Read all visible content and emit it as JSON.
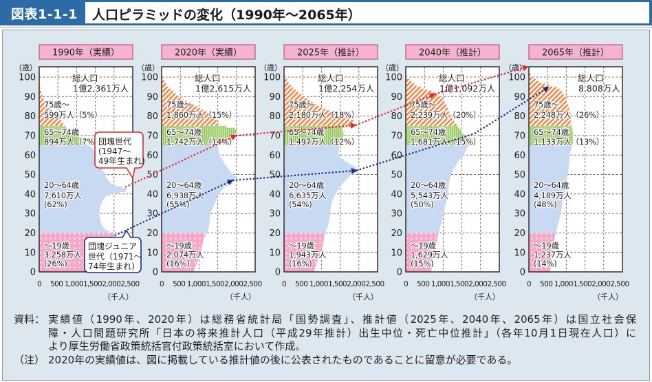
{
  "header": {
    "figure_label": "図表1-1-1",
    "title": "人口ピラミッドの変化（1990年〜2065年）"
  },
  "chart_data": {
    "type": "area",
    "title": "人口ピラミッドの変化（1990年〜2065年）",
    "xlabel": "（千人）",
    "ylabel": "（歳）",
    "xlim": [
      0,
      2500
    ],
    "ylim": [
      0,
      105
    ],
    "x_tick_values": [
      0,
      500,
      1000,
      1500,
      2000,
      2500
    ],
    "x_tick_labels": [
      "0",
      "500",
      "1,000",
      "1,500",
      "2,000",
      "2,500"
    ],
    "y_ticks": [
      "0",
      "10",
      "20",
      "30",
      "40",
      "50",
      "60",
      "70",
      "80",
      "90",
      "100"
    ],
    "grid": true,
    "colors": {
      "75+": "#f0884a",
      "65-74": "#93c462",
      "65-74_light": "#c9e3a6",
      "20-64": "#c8daf2",
      "0-19": "#f6a8c6",
      "header_fill": "#f6b3cf",
      "header_border": "#b8577f",
      "cohort_boomer": "#e3262b",
      "cohort_junior": "#1f2d86"
    },
    "age_bands": [
      {
        "key": "0-19",
        "from": 0,
        "to": 20
      },
      {
        "key": "20-64",
        "from": 20,
        "to": 65
      },
      {
        "key": "65-74",
        "from": 65,
        "to": 75
      },
      {
        "key": "75+",
        "from": 75,
        "to": 105
      }
    ],
    "panels": [
      {
        "year": 1990,
        "year_label": "1990年（実績）",
        "total_title": "総人口",
        "total_value": "1億2,361万人",
        "bands": [
          {
            "key": "75+",
            "population_10k": 599,
            "share_pct": 5,
            "lines": [
              "75歳〜",
              "599万人（5%）"
            ]
          },
          {
            "key": "65-74",
            "population_10k": 894,
            "share_pct": 7,
            "lines": [
              "65〜74歳",
              "894万人（7%）"
            ]
          },
          {
            "key": "20-64",
            "population_10k": 7610,
            "share_pct": 62,
            "lines": [
              "20〜64歳",
              "7,610万人",
              "(62%)"
            ]
          },
          {
            "key": "0-19",
            "population_10k": 3258,
            "share_pct": 26,
            "lines": [
              "〜19歳",
              "3,258万人",
              "(26%)"
            ]
          }
        ],
        "profile": [
          [
            0,
            1250
          ],
          [
            4,
            1300
          ],
          [
            5,
            1450
          ],
          [
            9,
            1500
          ],
          [
            10,
            1560
          ],
          [
            14,
            1700
          ],
          [
            15,
            1900
          ],
          [
            16,
            2050
          ],
          [
            19,
            2050
          ],
          [
            20,
            1900
          ],
          [
            22,
            1750
          ],
          [
            25,
            1650
          ],
          [
            30,
            1600
          ],
          [
            35,
            1650
          ],
          [
            38,
            1750
          ],
          [
            39,
            1800
          ],
          [
            40,
            2000
          ],
          [
            41,
            2300
          ],
          [
            43,
            2350
          ],
          [
            44,
            2050
          ],
          [
            45,
            1950
          ],
          [
            48,
            1800
          ],
          [
            50,
            1750
          ],
          [
            55,
            1650
          ],
          [
            60,
            1550
          ],
          [
            64,
            1400
          ],
          [
            65,
            1280
          ],
          [
            70,
            1030
          ],
          [
            74,
            720
          ],
          [
            75,
            690
          ],
          [
            80,
            480
          ],
          [
            85,
            200
          ],
          [
            90,
            90
          ],
          [
            95,
            20
          ],
          [
            98,
            3
          ],
          [
            100,
            0
          ]
        ]
      },
      {
        "year": 2020,
        "year_label": "2020年（実績）",
        "total_title": "総人口",
        "total_value": "1億2,615万人",
        "bands": [
          {
            "key": "75+",
            "population_10k": 1860,
            "share_pct": 15,
            "lines": [
              "75歳〜",
              "1,860万人（15%）"
            ]
          },
          {
            "key": "65-74",
            "population_10k": 1742,
            "share_pct": 14,
            "lines": [
              "65〜74歳",
              "1,742万人（14%）"
            ]
          },
          {
            "key": "20-64",
            "population_10k": 6938,
            "share_pct": 55,
            "lines": [
              "20〜64歳",
              "6,938万人",
              "(55%)"
            ]
          },
          {
            "key": "0-19",
            "population_10k": 2074,
            "share_pct": 16,
            "lines": [
              "〜19歳",
              "2,074万人",
              "(16%)"
            ]
          }
        ],
        "profile": [
          [
            0,
            860
          ],
          [
            5,
            950
          ],
          [
            10,
            1050
          ],
          [
            15,
            1100
          ],
          [
            19,
            1160
          ],
          [
            20,
            1230
          ],
          [
            25,
            1280
          ],
          [
            30,
            1300
          ],
          [
            35,
            1420
          ],
          [
            40,
            1520
          ],
          [
            44,
            1700
          ],
          [
            46,
            1950
          ],
          [
            49,
            2000
          ],
          [
            50,
            1900
          ],
          [
            55,
            1700
          ],
          [
            60,
            1550
          ],
          [
            64,
            1500
          ],
          [
            66,
            1550
          ],
          [
            69,
            1800
          ],
          [
            70,
            1950
          ],
          [
            72,
            2050
          ],
          [
            73,
            2000
          ],
          [
            74,
            1900
          ],
          [
            75,
            1550
          ],
          [
            78,
            1450
          ],
          [
            80,
            1350
          ],
          [
            83,
            1150
          ],
          [
            85,
            900
          ],
          [
            88,
            620
          ],
          [
            90,
            460
          ],
          [
            95,
            160
          ],
          [
            100,
            20
          ],
          [
            101,
            0
          ]
        ]
      },
      {
        "year": 2025,
        "year_label": "2025年（推計）",
        "total_title": "総人口",
        "total_value": "1億2,254万人",
        "bands": [
          {
            "key": "75+",
            "population_10k": 2180,
            "share_pct": 18,
            "lines": [
              "75歳〜",
              "2,180万人（18%）"
            ]
          },
          {
            "key": "65-74",
            "population_10k": 1497,
            "share_pct": 12,
            "lines": [
              "65〜74歳",
              "1,497万人（12%）"
            ]
          },
          {
            "key": "20-64",
            "population_10k": 6635,
            "share_pct": 54,
            "lines": [
              "20〜64歳",
              "6,635万人",
              "(54%)"
            ]
          },
          {
            "key": "0-19",
            "population_10k": 1943,
            "share_pct": 16,
            "lines": [
              "〜19歳",
              "1,943万人",
              "(16%)"
            ]
          }
        ],
        "profile": [
          [
            0,
            800
          ],
          [
            5,
            880
          ],
          [
            10,
            980
          ],
          [
            15,
            1050
          ],
          [
            19,
            1080
          ],
          [
            20,
            1100
          ],
          [
            25,
            1200
          ],
          [
            30,
            1230
          ],
          [
            35,
            1260
          ],
          [
            40,
            1370
          ],
          [
            45,
            1550
          ],
          [
            48,
            1700
          ],
          [
            50,
            1800
          ],
          [
            51,
            1950
          ],
          [
            53,
            1980
          ],
          [
            55,
            1800
          ],
          [
            58,
            1560
          ],
          [
            60,
            1450
          ],
          [
            64,
            1470
          ],
          [
            66,
            1480
          ],
          [
            70,
            1600
          ],
          [
            74,
            1550
          ],
          [
            75,
            1700
          ],
          [
            76,
            1850
          ],
          [
            78,
            1870
          ],
          [
            79,
            1600
          ],
          [
            80,
            1450
          ],
          [
            85,
            950
          ],
          [
            90,
            550
          ],
          [
            95,
            200
          ],
          [
            100,
            30
          ],
          [
            101,
            0
          ]
        ]
      },
      {
        "year": 2040,
        "year_label": "2040年（推計）",
        "total_title": "総人口",
        "total_value": "1億1,092万人",
        "bands": [
          {
            "key": "75+",
            "population_10k": 2239,
            "share_pct": 20,
            "lines": [
              "75歳〜",
              "2,239万人（20%）"
            ]
          },
          {
            "key": "65-74",
            "population_10k": 1681,
            "share_pct": 15,
            "lines": [
              "65〜74歳",
              "1,681万人（15%）"
            ]
          },
          {
            "key": "20-64",
            "population_10k": 5543,
            "share_pct": 50,
            "lines": [
              "20〜64歳",
              "5,543万人",
              "(50%)"
            ]
          },
          {
            "key": "0-19",
            "population_10k": 1629,
            "share_pct": 15,
            "lines": [
              "〜19歳",
              "1,629万人",
              "(15%)"
            ]
          }
        ],
        "profile": [
          [
            0,
            680
          ],
          [
            5,
            720
          ],
          [
            10,
            780
          ],
          [
            15,
            830
          ],
          [
            19,
            860
          ],
          [
            20,
            880
          ],
          [
            25,
            950
          ],
          [
            30,
            1010
          ],
          [
            35,
            1070
          ],
          [
            40,
            1130
          ],
          [
            45,
            1150
          ],
          [
            50,
            1200
          ],
          [
            55,
            1350
          ],
          [
            58,
            1450
          ],
          [
            60,
            1550
          ],
          [
            64,
            1650
          ],
          [
            66,
            1780
          ],
          [
            68,
            1800
          ],
          [
            69,
            1700
          ],
          [
            70,
            1560
          ],
          [
            74,
            1420
          ],
          [
            75,
            1380
          ],
          [
            80,
            1200
          ],
          [
            85,
            1100
          ],
          [
            88,
            1020
          ],
          [
            90,
            920
          ],
          [
            92,
            800
          ],
          [
            95,
            320
          ],
          [
            98,
            120
          ],
          [
            100,
            40
          ],
          [
            101,
            0
          ]
        ]
      },
      {
        "year": 2065,
        "year_label": "2065年（推計）",
        "total_title": "総人口",
        "total_value": "8,808万人",
        "bands": [
          {
            "key": "75+",
            "population_10k": 2248,
            "share_pct": 26,
            "lines": [
              "75歳〜",
              "2,248万人（26%）"
            ]
          },
          {
            "key": "65-74",
            "population_10k": 1133,
            "share_pct": 13,
            "lines": [
              "65〜74歳",
              "1,133万人（13%）"
            ]
          },
          {
            "key": "20-64",
            "population_10k": 4189,
            "share_pct": 48,
            "lines": [
              "20〜64歳",
              "4,189万人",
              "(48%)"
            ]
          },
          {
            "key": "0-19",
            "population_10k": 1237,
            "share_pct": 14,
            "lines": [
              "〜19歳",
              "1,237万人",
              "(14%)"
            ]
          }
        ],
        "profile": [
          [
            0,
            560
          ],
          [
            5,
            600
          ],
          [
            10,
            630
          ],
          [
            15,
            670
          ],
          [
            19,
            700
          ],
          [
            20,
            720
          ],
          [
            25,
            790
          ],
          [
            30,
            860
          ],
          [
            35,
            890
          ],
          [
            40,
            940
          ],
          [
            45,
            990
          ],
          [
            50,
            1030
          ],
          [
            55,
            1080
          ],
          [
            60,
            1090
          ],
          [
            64,
            1140
          ],
          [
            65,
            1170
          ],
          [
            70,
            1180
          ],
          [
            74,
            1160
          ],
          [
            75,
            1130
          ],
          [
            80,
            1120
          ],
          [
            85,
            1060
          ],
          [
            90,
            970
          ],
          [
            93,
            860
          ],
          [
            95,
            700
          ],
          [
            97,
            330
          ],
          [
            100,
            70
          ],
          [
            103,
            10
          ],
          [
            104,
            0
          ]
        ]
      }
    ],
    "cohorts": [
      {
        "key": "boomer",
        "color_key": "cohort_boomer",
        "callout_lines": [
          "団塊世代",
          "(1947〜",
          "49年生まれ)"
        ],
        "points": [
          {
            "panel": 0,
            "age": 43.5,
            "value": 2300,
            "arrow": false
          },
          {
            "panel": 1,
            "age": 70,
            "value": 1985,
            "arrow": true
          },
          {
            "panel": 2,
            "age": 75.3,
            "value": 1910,
            "arrow": true
          },
          {
            "panel": 3,
            "age": 91.2,
            "value": 772,
            "arrow": true
          },
          {
            "panel": 4,
            "age": 105.3,
            "value": -37,
            "arrow": true
          }
        ]
      },
      {
        "key": "junior",
        "color_key": "cohort_junior",
        "callout_lines": [
          "団塊ジュニア",
          "世代（1971〜",
          "74年生まれ)"
        ],
        "points": [
          {
            "panel": 0,
            "age": 18.7,
            "value": 2020,
            "arrow": false
          },
          {
            "panel": 1,
            "age": 47,
            "value": 1893,
            "arrow": true
          },
          {
            "panel": 2,
            "age": 52,
            "value": 1930,
            "arrow": true
          },
          {
            "panel": 3,
            "age": 71,
            "value": 1838,
            "arrow": false
          },
          {
            "panel": 4,
            "age": 94.7,
            "value": 515,
            "arrow": true
          }
        ]
      }
    ]
  },
  "footnotes": {
    "source_label": "資料：",
    "source_lines": [
      "実績値（1990年、2020年）は総務省統計局「国勢調査」、推計値（2025年、2040年、2065年）は国立社会保",
      "障・人口問題研究所「日本の将来推計人口（平成29年推計）出生中位・死亡中位推計」（各年10月1日現在人口）に",
      "より厚生労働省政策統括官付政策統括室において作成。"
    ],
    "note_label": "（注）",
    "note_text": "2020年の実績値は、図に掲載している推計値の後に公表されたものであることに留意が必要である。"
  }
}
